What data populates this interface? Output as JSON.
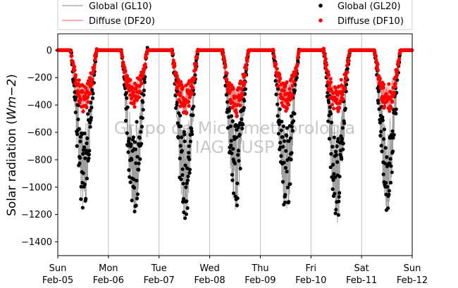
{
  "chart_data": {
    "type": "line",
    "ylabel": "Solar radiation (",
    "ylabel_unit": "Wm",
    "ylabel_exp": "−2",
    "ylabel_close": ")",
    "ylim": [
      -1500,
      120
    ],
    "yticks": [
      0,
      -200,
      -400,
      -600,
      -800,
      -1000,
      -1200,
      -1400
    ],
    "xlim": [
      0,
      7
    ],
    "xticks": [
      {
        "day": "Sun",
        "date": "Feb-05"
      },
      {
        "day": "Mon",
        "date": "Feb-06"
      },
      {
        "day": "Tue",
        "date": "Feb-07"
      },
      {
        "day": "Wed",
        "date": "Feb-08"
      },
      {
        "day": "Thu",
        "date": "Feb-09"
      },
      {
        "day": "Fri",
        "date": "Feb-10"
      },
      {
        "day": "Sat",
        "date": "Feb-11"
      },
      {
        "day": "Sun",
        "date": "Feb-12"
      }
    ],
    "grid": "vertical",
    "legend_placement": "top",
    "watermark": [
      "Grupo de Micrometeorologia",
      "IAG - USP"
    ],
    "daily_minimum_global": [
      -1190,
      -1240,
      -1260,
      -1180,
      -1220,
      -1280,
      -1180
    ],
    "daily_minimum_diffuse": [
      -440,
      -410,
      -480,
      -480,
      -440,
      -470,
      -450
    ],
    "series": [
      {
        "name": "Global (GL10)",
        "style": "line",
        "color": "#a0a0a0",
        "values": [
          0,
          -350,
          -780,
          -1190,
          -780,
          -350,
          0
        ]
      },
      {
        "name": "Diffuse (DF20)",
        "style": "line",
        "color": "#f08080",
        "values": [
          0,
          -200,
          -320,
          -440,
          -320,
          -200,
          0
        ]
      },
      {
        "name": "Global (GL20)",
        "style": "marker",
        "color": "#000000",
        "values": [
          0,
          -350,
          -780,
          -1190,
          -780,
          -350,
          0
        ]
      },
      {
        "name": "Diffuse (DF10)",
        "style": "marker",
        "color": "#ff0000",
        "values": [
          0,
          -200,
          -320,
          -440,
          -320,
          -200,
          0
        ]
      }
    ]
  }
}
